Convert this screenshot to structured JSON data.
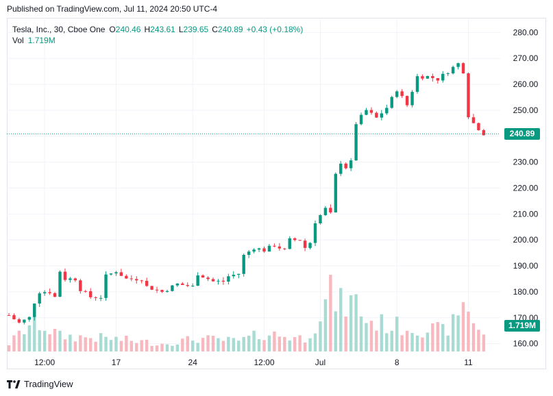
{
  "header": {
    "published": "Published on TradingView.com, Jul 11, 2024 20:50 UTC-4"
  },
  "legend": {
    "symbol": "Tesla, Inc., 30, Cboe One",
    "o_label": "O",
    "o_value": "240.46",
    "h_label": "H",
    "h_value": "243.61",
    "l_label": "L",
    "l_value": "239.65",
    "c_label": "C",
    "c_value": "240.89",
    "change": "+0.43 (+0.18%)",
    "vol_label": "Vol",
    "vol_value": "1.719M"
  },
  "price_tag": "240.89",
  "volume_tag": "1.719M",
  "footer": {
    "brand": "TradingView"
  },
  "colors": {
    "up": "#089981",
    "down": "#f23645",
    "vol_up": "#a8dbd3",
    "vol_down": "#f7b9bf"
  },
  "chart_data": {
    "type": "candlestick",
    "title": "",
    "xlabel": "",
    "ylabel": "",
    "ylim": [
      157,
      283
    ],
    "yticks": [
      160,
      170,
      180,
      190,
      200,
      210,
      220,
      230,
      240,
      250,
      260,
      270,
      280
    ],
    "y_tick_labels": [
      "160.00",
      "170.00",
      "180.00",
      "190.00",
      "200.00",
      "210.00",
      "220.00",
      "230.00",
      "240.00",
      "250.00",
      "260.00",
      "270.00",
      "280.00"
    ],
    "x_tick_labels": [
      "12:00",
      "17",
      "24",
      "12:00",
      "Jul",
      "8",
      "11"
    ],
    "x_tick_positions": [
      7,
      21,
      36,
      50,
      61,
      76,
      90
    ],
    "last_price": 240.89,
    "grid": true,
    "anchors": [
      [
        0,
        171
      ],
      [
        2,
        168
      ],
      [
        4,
        170
      ],
      [
        5,
        176
      ],
      [
        6,
        180
      ],
      [
        8,
        180
      ],
      [
        9,
        178
      ],
      [
        10,
        188
      ],
      [
        11,
        185
      ],
      [
        13,
        185
      ],
      [
        14,
        181
      ],
      [
        16,
        178
      ],
      [
        18,
        178
      ],
      [
        19,
        186
      ],
      [
        21,
        188
      ],
      [
        23,
        185
      ],
      [
        26,
        185
      ],
      [
        27,
        182
      ],
      [
        30,
        180
      ],
      [
        33,
        183
      ],
      [
        36,
        182
      ],
      [
        37,
        187
      ],
      [
        40,
        184
      ],
      [
        42,
        184
      ],
      [
        43,
        186
      ],
      [
        45,
        187
      ],
      [
        46,
        194
      ],
      [
        48,
        197
      ],
      [
        50,
        196
      ],
      [
        52,
        198
      ],
      [
        53,
        197
      ],
      [
        54,
        196
      ],
      [
        55,
        200
      ],
      [
        57,
        200
      ],
      [
        58,
        197
      ],
      [
        59,
        199
      ],
      [
        60,
        207
      ],
      [
        62,
        212
      ],
      [
        63,
        210
      ],
      [
        64,
        225
      ],
      [
        65,
        230
      ],
      [
        66,
        228
      ],
      [
        67,
        230
      ],
      [
        68,
        245
      ],
      [
        70,
        250
      ],
      [
        72,
        247
      ],
      [
        74,
        251
      ],
      [
        76,
        258
      ],
      [
        78,
        252
      ],
      [
        80,
        263
      ],
      [
        82,
        263
      ],
      [
        84,
        262
      ],
      [
        86,
        265
      ],
      [
        88,
        268
      ],
      [
        89,
        265
      ],
      [
        90,
        248
      ],
      [
        91,
        245
      ],
      [
        92,
        243
      ],
      [
        93,
        241
      ]
    ],
    "volume_anchors": [
      [
        0,
        3
      ],
      [
        5,
        12
      ],
      [
        10,
        6
      ],
      [
        20,
        5
      ],
      [
        30,
        3
      ],
      [
        37,
        5
      ],
      [
        45,
        4
      ],
      [
        50,
        7
      ],
      [
        58,
        5
      ],
      [
        60,
        11
      ],
      [
        63,
        22
      ],
      [
        65,
        18
      ],
      [
        68,
        19
      ],
      [
        70,
        12
      ],
      [
        75,
        10
      ],
      [
        80,
        9
      ],
      [
        85,
        8
      ],
      [
        88,
        12
      ],
      [
        89,
        22
      ],
      [
        90,
        15
      ],
      [
        93,
        7
      ]
    ],
    "candle_count": 94
  }
}
